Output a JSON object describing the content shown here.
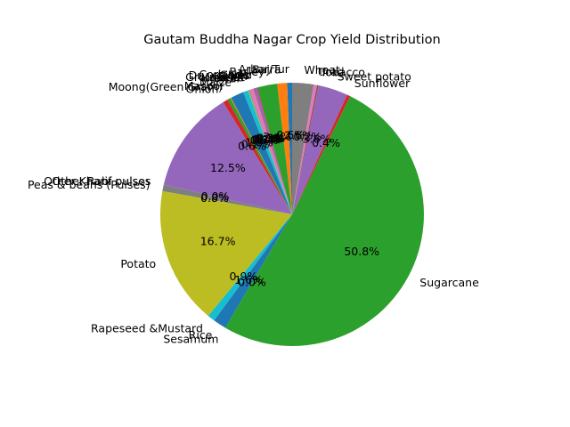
{
  "chart_data": {
    "type": "pie",
    "title": "Gautam Buddha Nagar Crop Yield Distribution",
    "start_angle_deg": 90,
    "direction": "counterclockwise",
    "slices": [
      {
        "label": "Arhar/Tur",
        "value": 0.6,
        "pct_label": "0.6%",
        "color": "#1f77b4"
      },
      {
        "label": "Bajra",
        "value": 1.2,
        "pct_label": "",
        "color": "#ff7f0e"
      },
      {
        "label": "Barley",
        "value": 2.4,
        "pct_label": "2.4%",
        "color": "#2ca02c"
      },
      {
        "label": "Coriander",
        "value": 0.1,
        "pct_label": "0.1%",
        "color": "#d62728"
      },
      {
        "label": "Garlic",
        "value": 0.3,
        "pct_label": "0.3%",
        "color": "#9467bd"
      },
      {
        "label": "Dry chillies",
        "value": 0.1,
        "pct_label": "0.1%",
        "color": "#8c564b"
      },
      {
        "label": "Gram",
        "value": 0.5,
        "pct_label": "0.5%",
        "color": "#e377c2"
      },
      {
        "label": "Groundnut",
        "value": 0.1,
        "pct_label": "0.1%",
        "color": "#7f7f7f"
      },
      {
        "label": "Linseed",
        "value": 0.1,
        "pct_label": "0.1%",
        "color": "#bcbd22"
      },
      {
        "label": "Jowar",
        "value": 0.6,
        "pct_label": "0.6%",
        "color": "#17becf"
      },
      {
        "label": "Maize",
        "value": 1.6,
        "pct_label": "1.6%",
        "color": "#1f77b4"
      },
      {
        "label": "Masoor",
        "value": 0.1,
        "pct_label": "0.1%",
        "color": "#ff7f0e"
      },
      {
        "label": "Moong(Green Gram)",
        "value": 0.4,
        "pct_label": "",
        "color": "#2ca02c"
      },
      {
        "label": "Onion",
        "value": 0.6,
        "pct_label": "0.6%",
        "color": "#d62728"
      },
      {
        "label": "",
        "value": 12.5,
        "pct_label": "12.5%",
        "color": "#9467bd"
      },
      {
        "label": "Other Kharif pulses",
        "value": 0.0,
        "pct_label": "",
        "color": "#8c564b"
      },
      {
        "label": "Other Rabi pulses",
        "value": 0.0,
        "pct_label": "0.0%",
        "color": "#e377c2"
      },
      {
        "label": "Peas & beans (Pulses)",
        "value": 0.8,
        "pct_label": "0.8%",
        "color": "#7f7f7f"
      },
      {
        "label": "Potato",
        "value": 16.7,
        "pct_label": "16.7%",
        "color": "#bcbd22"
      },
      {
        "label": "Rapeseed &Mustard",
        "value": 0.9,
        "pct_label": "0.9%",
        "color": "#17becf"
      },
      {
        "label": "Rice",
        "value": 1.6,
        "pct_label": "1.6%",
        "color": "#1f77b4"
      },
      {
        "label": "Sesamum",
        "value": 0.0,
        "pct_label": "0.0%",
        "color": "#ff7f0e"
      },
      {
        "label": "Sugarcane",
        "value": 50.8,
        "pct_label": "50.8%",
        "color": "#2ca02c"
      },
      {
        "label": "Sunflower",
        "value": 0.4,
        "pct_label": "0.4%",
        "color": "#d62728"
      },
      {
        "label": "Sweet potato",
        "value": 3.6,
        "pct_label": "3.6%",
        "color": "#9467bd"
      },
      {
        "label": "Tobacco",
        "value": 0.2,
        "pct_label": "0.2%",
        "color": "#8c564b"
      },
      {
        "label": "Urad",
        "value": 0.4,
        "pct_label": "",
        "color": "#e377c2"
      },
      {
        "label": "Wheat",
        "value": 2.6,
        "pct_label": "2.6%",
        "color": "#7f7f7f"
      }
    ]
  }
}
